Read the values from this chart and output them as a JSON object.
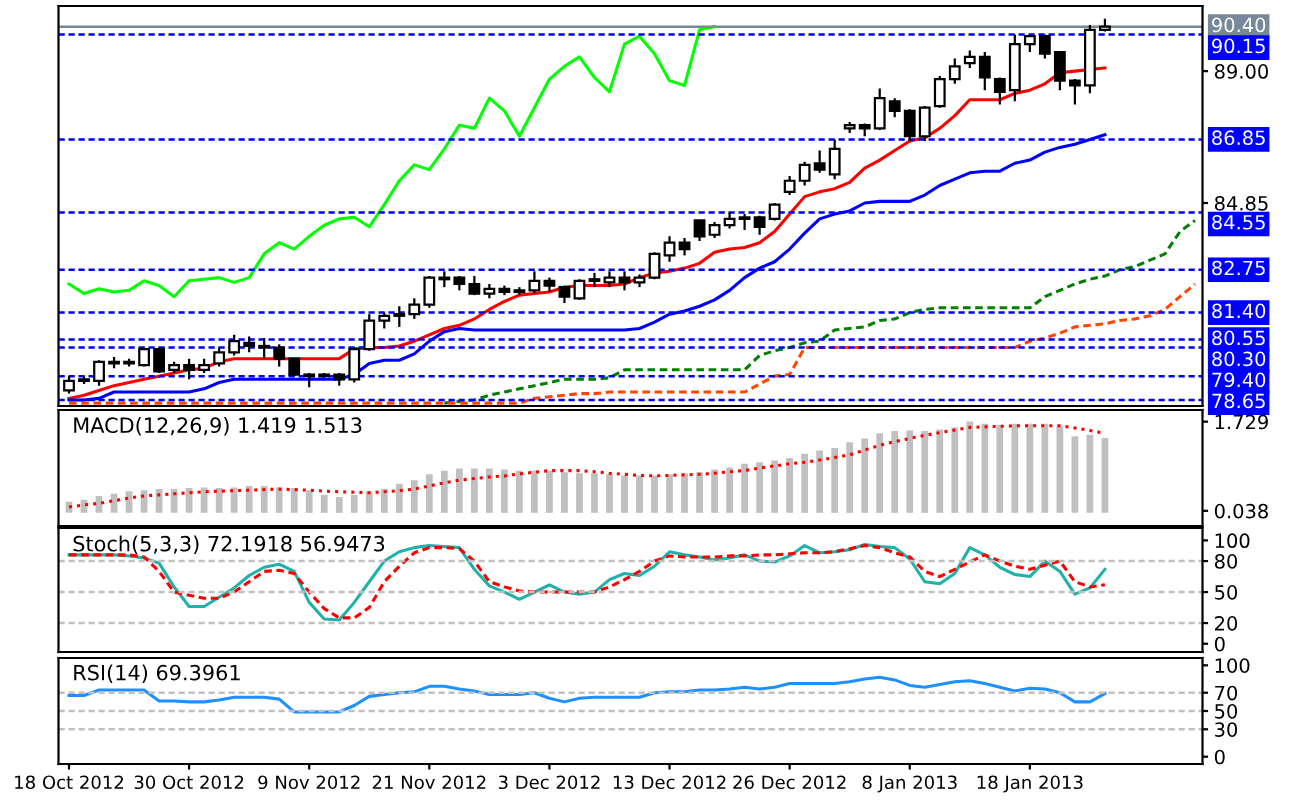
{
  "chart_data": [
    {
      "type": "candlestick",
      "categories": [
        null,
        null,
        null,
        null,
        null,
        null,
        null,
        null,
        null,
        null,
        null,
        null,
        null,
        null,
        null,
        null,
        null,
        null,
        null,
        null,
        null,
        null,
        null,
        null,
        null,
        null,
        null,
        null,
        null,
        null,
        null,
        null,
        null,
        null,
        null,
        null,
        null,
        null,
        null,
        null,
        null,
        null,
        null,
        null,
        null,
        null,
        null,
        null,
        null,
        null,
        null,
        null,
        null,
        null,
        null,
        null,
        null,
        null,
        null,
        null,
        null,
        null,
        null,
        null,
        null,
        null,
        null,
        null,
        null,
        null,
        null,
        null,
        null,
        null,
        null,
        null
      ],
      "ohlc": [
        [
          78.95,
          79.4,
          78.85,
          79.25
        ],
        [
          79.3,
          79.4,
          79.15,
          79.25
        ],
        [
          79.25,
          79.9,
          79.1,
          79.85
        ],
        [
          79.8,
          80.0,
          79.65,
          79.85
        ],
        [
          79.85,
          79.95,
          79.7,
          79.8
        ],
        [
          79.75,
          80.3,
          79.7,
          80.25
        ],
        [
          80.25,
          80.3,
          79.5,
          79.55
        ],
        [
          79.6,
          79.85,
          79.5,
          79.75
        ],
        [
          79.75,
          79.95,
          79.3,
          79.6
        ],
        [
          79.6,
          79.95,
          79.5,
          79.75
        ],
        [
          79.8,
          80.3,
          79.7,
          80.15
        ],
        [
          80.15,
          80.7,
          80.05,
          80.5
        ],
        [
          80.45,
          80.65,
          80.15,
          80.35
        ],
        [
          80.35,
          80.6,
          79.95,
          80.3
        ],
        [
          80.3,
          80.4,
          79.7,
          79.95
        ],
        [
          79.95,
          79.95,
          79.4,
          79.45
        ],
        [
          79.45,
          79.5,
          79.05,
          79.4
        ],
        [
          79.4,
          79.5,
          79.35,
          79.45
        ],
        [
          79.45,
          79.5,
          79.1,
          79.3
        ],
        [
          79.3,
          80.3,
          79.2,
          80.25
        ],
        [
          80.25,
          81.35,
          80.2,
          81.15
        ],
        [
          81.15,
          81.4,
          80.9,
          81.3
        ],
        [
          81.3,
          81.6,
          80.95,
          81.35
        ],
        [
          81.35,
          81.85,
          81.2,
          81.65
        ],
        [
          81.65,
          82.55,
          81.55,
          82.5
        ],
        [
          82.5,
          82.7,
          82.2,
          82.45
        ],
        [
          82.5,
          82.55,
          82.1,
          82.3
        ],
        [
          82.3,
          82.55,
          81.95,
          82.0
        ],
        [
          82.0,
          82.3,
          81.85,
          82.15
        ],
        [
          82.15,
          82.25,
          81.95,
          82.05
        ],
        [
          82.05,
          82.2,
          81.95,
          82.1
        ],
        [
          82.1,
          82.7,
          82.0,
          82.4
        ],
        [
          82.4,
          82.5,
          82.05,
          82.25
        ],
        [
          82.2,
          82.25,
          81.7,
          81.9
        ],
        [
          81.85,
          82.45,
          81.8,
          82.4
        ],
        [
          82.4,
          82.65,
          82.2,
          82.45
        ],
        [
          82.35,
          82.7,
          82.2,
          82.5
        ],
        [
          82.5,
          82.7,
          82.1,
          82.35
        ],
        [
          82.35,
          82.6,
          82.2,
          82.5
        ],
        [
          82.5,
          83.3,
          82.45,
          83.25
        ],
        [
          83.2,
          83.8,
          83.0,
          83.6
        ],
        [
          83.6,
          83.75,
          83.2,
          83.4
        ],
        [
          84.3,
          84.3,
          83.65,
          83.8
        ],
        [
          83.85,
          84.25,
          83.75,
          84.15
        ],
        [
          84.15,
          84.55,
          84.05,
          84.35
        ],
        [
          84.35,
          84.5,
          84.0,
          84.4
        ],
        [
          84.4,
          84.45,
          83.85,
          84.1
        ],
        [
          84.35,
          84.85,
          84.3,
          84.8
        ],
        [
          85.2,
          85.7,
          85.1,
          85.55
        ],
        [
          85.55,
          86.15,
          85.4,
          86.05
        ],
        [
          86.1,
          86.5,
          85.8,
          85.9
        ],
        [
          85.75,
          86.85,
          85.6,
          86.55
        ],
        [
          87.2,
          87.4,
          87.05,
          87.3
        ],
        [
          87.3,
          87.35,
          86.95,
          87.2
        ],
        [
          87.2,
          88.45,
          87.15,
          88.15
        ],
        [
          88.05,
          88.15,
          87.55,
          87.75
        ],
        [
          87.75,
          87.8,
          86.8,
          86.95
        ],
        [
          86.95,
          87.9,
          86.8,
          87.85
        ],
        [
          87.9,
          88.85,
          87.85,
          88.75
        ],
        [
          88.75,
          89.4,
          88.6,
          89.15
        ],
        [
          89.25,
          89.65,
          89.1,
          89.45
        ],
        [
          89.45,
          89.6,
          88.4,
          88.8
        ],
        [
          88.75,
          88.8,
          87.95,
          88.35
        ],
        [
          88.4,
          90.15,
          88.05,
          89.85
        ],
        [
          89.85,
          90.15,
          89.6,
          90.1
        ],
        [
          90.1,
          90.15,
          89.4,
          89.55
        ],
        [
          89.6,
          89.6,
          88.4,
          88.7
        ],
        [
          88.7,
          88.75,
          87.95,
          88.55
        ],
        [
          88.55,
          90.45,
          88.3,
          90.3
        ],
        [
          90.3,
          90.65,
          90.25,
          90.4
        ],
        null,
        null,
        null,
        null,
        null,
        null
      ],
      "series": [
        {
          "type": "line",
          "color": "#ff0000",
          "values": [
            78.7,
            78.8,
            78.95,
            79.1,
            79.2,
            79.3,
            79.4,
            79.5,
            79.6,
            79.65,
            79.85,
            79.95,
            79.95,
            79.95,
            79.95,
            79.95,
            79.95,
            79.95,
            79.95,
            80.25,
            80.3,
            80.3,
            80.35,
            80.5,
            80.7,
            80.9,
            81.0,
            81.2,
            81.5,
            81.75,
            81.95,
            82.0,
            82.05,
            82.2,
            82.25,
            82.25,
            82.25,
            82.3,
            82.5,
            82.65,
            82.7,
            82.8,
            82.95,
            83.3,
            83.4,
            83.45,
            83.6,
            83.95,
            84.5,
            85.05,
            85.2,
            85.3,
            85.5,
            85.95,
            86.2,
            86.5,
            86.8,
            86.9,
            87.2,
            87.6,
            88.1,
            88.1,
            88.1,
            88.3,
            88.4,
            88.6,
            88.95,
            89.0,
            89.05,
            89.1,
            null,
            null,
            null,
            null,
            null,
            null
          ]
        },
        {
          "type": "line",
          "color": "#0000ff",
          "values": [
            78.65,
            78.65,
            78.7,
            78.9,
            78.9,
            78.9,
            78.9,
            78.9,
            78.9,
            79.0,
            79.2,
            79.3,
            79.3,
            79.3,
            79.3,
            79.3,
            79.3,
            79.3,
            79.3,
            79.45,
            79.8,
            79.9,
            79.9,
            80.1,
            80.5,
            80.8,
            80.9,
            80.85,
            80.85,
            80.85,
            80.85,
            80.85,
            80.85,
            80.85,
            80.85,
            80.85,
            80.85,
            80.85,
            80.9,
            81.1,
            81.35,
            81.45,
            81.6,
            81.8,
            82.1,
            82.5,
            82.8,
            83.0,
            83.4,
            83.9,
            84.35,
            84.5,
            84.6,
            84.85,
            84.9,
            84.9,
            84.9,
            85.1,
            85.4,
            85.6,
            85.8,
            85.85,
            85.85,
            86.1,
            86.2,
            86.45,
            86.6,
            86.7,
            86.85,
            87.0,
            null,
            null,
            null,
            null,
            null,
            null
          ]
        },
        {
          "type": "line",
          "color": "#00ff00",
          "values": [
            82.3,
            82.0,
            82.15,
            82.05,
            82.1,
            82.4,
            82.25,
            81.9,
            82.4,
            82.45,
            82.5,
            82.35,
            82.5,
            83.25,
            83.6,
            83.4,
            83.8,
            84.15,
            84.35,
            84.4,
            84.1,
            84.8,
            85.55,
            86.05,
            85.9,
            86.55,
            87.3,
            87.2,
            88.15,
            87.75,
            86.95,
            87.85,
            88.75,
            89.15,
            89.45,
            88.8,
            88.35,
            89.85,
            90.1,
            89.55,
            88.7,
            88.55,
            90.3,
            90.4,
            null,
            null,
            null,
            null,
            null,
            null,
            null,
            null,
            null,
            null,
            null,
            null,
            null,
            null,
            null,
            null,
            null,
            null,
            null,
            null,
            null,
            null,
            null,
            null,
            null,
            null,
            null,
            null,
            null,
            null,
            null,
            null
          ]
        },
        {
          "type": "line",
          "color": "#008000",
          "line_style": "dashed",
          "values": [
            null,
            null,
            null,
            null,
            null,
            null,
            null,
            null,
            null,
            null,
            null,
            null,
            null,
            null,
            null,
            null,
            null,
            null,
            null,
            null,
            null,
            null,
            null,
            null,
            null,
            78.55,
            78.6,
            78.65,
            78.8,
            78.9,
            79.0,
            79.1,
            79.2,
            79.3,
            79.3,
            79.3,
            79.35,
            79.6,
            79.6,
            79.6,
            79.6,
            79.6,
            79.6,
            79.6,
            79.6,
            79.6,
            80.05,
            80.2,
            80.3,
            80.45,
            80.5,
            80.85,
            80.9,
            80.95,
            81.15,
            81.2,
            81.4,
            81.5,
            81.55,
            81.55,
            81.55,
            81.55,
            81.55,
            81.55,
            81.55,
            81.9,
            82.1,
            82.3,
            82.45,
            82.55,
            82.75,
            82.85,
            83.05,
            83.25,
            83.95,
            84.3
          ]
        },
        {
          "type": "line",
          "color": "#ff4500",
          "line_style": "dashed",
          "values": [
            78.55,
            78.55,
            78.55,
            78.55,
            78.55,
            78.55,
            78.55,
            78.55,
            78.55,
            78.55,
            78.55,
            78.55,
            78.55,
            78.55,
            78.55,
            78.55,
            78.55,
            78.55,
            78.55,
            78.55,
            78.55,
            78.55,
            78.55,
            78.55,
            78.55,
            78.55,
            78.55,
            78.55,
            78.55,
            78.55,
            78.55,
            78.7,
            78.75,
            78.8,
            78.85,
            78.85,
            78.9,
            78.9,
            78.9,
            78.9,
            78.9,
            78.9,
            78.9,
            78.9,
            78.9,
            78.9,
            79.15,
            79.4,
            79.45,
            80.3,
            80.3,
            80.3,
            80.3,
            80.3,
            80.3,
            80.3,
            80.3,
            80.3,
            80.3,
            80.3,
            80.3,
            80.3,
            80.3,
            80.3,
            80.5,
            80.6,
            80.75,
            80.95,
            81.0,
            81.05,
            81.15,
            81.2,
            81.3,
            81.5,
            81.9,
            82.3
          ]
        }
      ],
      "ylim": [
        78.46,
        91.05
      ],
      "yticks": [
        {
          "value": 89.0,
          "label": "89.00"
        },
        {
          "value": 84.85,
          "label": "84.85"
        }
      ],
      "ref_lines": [
        {
          "axis": "y",
          "value": 90.4,
          "label": "90.40",
          "color": "#778899",
          "line_style": "solid"
        },
        {
          "axis": "y",
          "value": 90.15,
          "label": "90.15",
          "color": "#0000ff",
          "line_style": "dashed"
        },
        {
          "axis": "y",
          "value": 86.85,
          "label": "86.85",
          "color": "#0000ff",
          "line_style": "dashed"
        },
        {
          "axis": "y",
          "value": 84.55,
          "label": "84.55",
          "color": "#0000ff",
          "line_style": "dashed"
        },
        {
          "axis": "y",
          "value": 82.75,
          "label": "82.75",
          "color": "#0000ff",
          "line_style": "dashed"
        },
        {
          "axis": "y",
          "value": 81.4,
          "label": "81.40",
          "color": "#0000ff",
          "line_style": "dashed"
        },
        {
          "axis": "y",
          "value": 80.55,
          "label": "80.55",
          "color": "#0000ff",
          "line_style": "dashed"
        },
        {
          "axis": "y",
          "value": 80.3,
          "label": "80.30",
          "color": "#0000ff",
          "line_style": "dashed"
        },
        {
          "axis": "y",
          "value": 79.4,
          "label": "79.40",
          "color": "#0000ff",
          "line_style": "dashed"
        },
        {
          "axis": "y",
          "value": 78.65,
          "label": "78.65",
          "color": "#0000ff",
          "line_style": "dashed"
        }
      ],
      "tick_labels": "y"
    },
    {
      "type": "bar",
      "title": "MACD(12,26,9) 1.419 1.513",
      "categories": [
        null,
        null,
        null,
        null,
        null,
        null,
        null,
        null,
        null,
        null,
        null,
        null,
        null,
        null,
        null,
        null,
        null,
        null,
        null,
        null,
        null,
        null,
        null,
        null,
        null,
        null,
        null,
        null,
        null,
        null,
        null,
        null,
        null,
        null,
        null,
        null,
        null,
        null,
        null,
        null,
        null,
        null,
        null,
        null,
        null,
        null,
        null,
        null,
        null,
        null,
        null,
        null,
        null,
        null,
        null,
        null,
        null,
        null,
        null,
        null,
        null,
        null,
        null,
        null,
        null,
        null,
        null,
        null,
        null,
        null,
        null,
        null,
        null,
        null,
        null,
        null
      ],
      "series": [
        {
          "type": "bar",
          "color": "#c0c0c0",
          "values": [
            0.21,
            0.25,
            0.32,
            0.36,
            0.41,
            0.43,
            0.45,
            0.45,
            0.47,
            0.48,
            0.47,
            0.48,
            0.51,
            0.51,
            0.48,
            0.47,
            0.43,
            0.34,
            0.3,
            0.34,
            0.41,
            0.45,
            0.55,
            0.62,
            0.73,
            0.8,
            0.84,
            0.84,
            0.84,
            0.82,
            0.8,
            0.8,
            0.8,
            0.77,
            0.75,
            0.75,
            0.73,
            0.71,
            0.71,
            0.71,
            0.73,
            0.75,
            0.77,
            0.82,
            0.86,
            0.93,
            0.96,
            0.99,
            1.04,
            1.12,
            1.18,
            1.23,
            1.34,
            1.41,
            1.51,
            1.55,
            1.56,
            1.55,
            1.58,
            1.62,
            1.73,
            1.69,
            1.67,
            1.69,
            1.69,
            1.69,
            1.65,
            1.45,
            1.48,
            1.42,
            null,
            null,
            null,
            null,
            null,
            null
          ]
        },
        {
          "type": "line",
          "color": "#ff0000",
          "line_style": "dotted",
          "values": [
            0.11,
            0.15,
            0.18,
            0.23,
            0.28,
            0.32,
            0.34,
            0.36,
            0.38,
            0.4,
            0.41,
            0.42,
            0.43,
            0.44,
            0.45,
            0.44,
            0.43,
            0.41,
            0.4,
            0.39,
            0.38,
            0.4,
            0.42,
            0.45,
            0.51,
            0.57,
            0.62,
            0.65,
            0.68,
            0.7,
            0.74,
            0.77,
            0.8,
            0.8,
            0.8,
            0.78,
            0.75,
            0.73,
            0.71,
            0.7,
            0.71,
            0.72,
            0.73,
            0.75,
            0.78,
            0.8,
            0.85,
            0.89,
            0.93,
            0.96,
            1.0,
            1.05,
            1.1,
            1.19,
            1.28,
            1.35,
            1.41,
            1.47,
            1.52,
            1.57,
            1.62,
            1.63,
            1.64,
            1.65,
            1.65,
            1.65,
            1.65,
            1.61,
            1.56,
            1.51,
            null,
            null,
            null,
            null,
            null,
            null
          ]
        }
      ],
      "ylim": [
        -0.25,
        1.95
      ],
      "yticks": [
        1.729,
        0.038
      ],
      "tick_labels": "y"
    },
    {
      "type": "line",
      "title": "Stoch(5,3,3) 72.1918 56.9473",
      "categories": [
        null,
        null,
        null,
        null,
        null,
        null,
        null,
        null,
        null,
        null,
        null,
        null,
        null,
        null,
        null,
        null,
        null,
        null,
        null,
        null,
        null,
        null,
        null,
        null,
        null,
        null,
        null,
        null,
        null,
        null,
        null,
        null,
        null,
        null,
        null,
        null,
        null,
        null,
        null,
        null,
        null,
        null,
        null,
        null,
        null,
        null,
        null,
        null,
        null,
        null,
        null,
        null,
        null,
        null,
        null,
        null,
        null,
        null,
        null,
        null,
        null,
        null,
        null,
        null,
        null,
        null,
        null,
        null,
        null,
        null,
        null,
        null,
        null,
        null,
        null,
        null
      ],
      "series": [
        {
          "type": "line",
          "color": "#20b2aa",
          "values": [
            86,
            86,
            86,
            86,
            85,
            83,
            78,
            55,
            36,
            36,
            45,
            54,
            66,
            74,
            77,
            70,
            40,
            24,
            23,
            40,
            60,
            80,
            89,
            93,
            95,
            94,
            93,
            72,
            56,
            50,
            43,
            50,
            57,
            50,
            48,
            50,
            62,
            68,
            66,
            75,
            89,
            86,
            84,
            81,
            83,
            86,
            80,
            79,
            85,
            95,
            88,
            89,
            91,
            96,
            94,
            93,
            82,
            60,
            58,
            68,
            93,
            86,
            74,
            67,
            65,
            80,
            70,
            48,
            54,
            72,
            null,
            null,
            null,
            null,
            null,
            null
          ]
        },
        {
          "type": "line",
          "color": "#ff0000",
          "line_style": "dashed",
          "values": [
            86,
            86,
            86,
            86,
            86,
            84,
            70,
            50,
            47,
            44,
            44,
            50,
            60,
            70,
            71,
            68,
            50,
            34,
            25,
            25,
            35,
            60,
            75,
            88,
            93,
            93,
            92,
            80,
            60,
            55,
            51,
            50,
            50,
            50,
            50,
            50,
            55,
            62,
            70,
            80,
            85,
            84,
            84,
            84,
            85,
            85,
            86,
            86,
            87,
            88,
            88,
            89,
            92,
            95,
            93,
            88,
            84,
            70,
            65,
            72,
            79,
            86,
            80,
            75,
            72,
            76,
            80,
            60,
            55,
            57,
            null,
            null,
            null,
            null,
            null,
            null
          ]
        }
      ],
      "ylim": [
        -8,
        112
      ],
      "yticks": [
        100,
        80,
        50,
        20,
        0
      ],
      "ref_lines": [
        {
          "axis": "y",
          "value": 80,
          "color": "#c0c0c0",
          "line_style": "dashed"
        },
        {
          "axis": "y",
          "value": 50,
          "color": "#c0c0c0",
          "line_style": "dashed"
        },
        {
          "axis": "y",
          "value": 20,
          "color": "#c0c0c0",
          "line_style": "dashed"
        }
      ],
      "tick_labels": "y"
    },
    {
      "type": "line",
      "title": "RSI(14) 69.3961",
      "categories": [
        "18 Oct 2012",
        null,
        null,
        null,
        null,
        null,
        null,
        null,
        "30 Oct 2012",
        null,
        null,
        null,
        null,
        null,
        null,
        null,
        "9 Nov 2012",
        null,
        null,
        null,
        null,
        null,
        null,
        null,
        "21 Nov 2012",
        null,
        null,
        null,
        null,
        null,
        null,
        null,
        "3 Dec 2012",
        null,
        null,
        null,
        null,
        null,
        null,
        null,
        "13 Dec 2012",
        null,
        null,
        null,
        null,
        null,
        null,
        null,
        "26 Dec 2012",
        null,
        null,
        null,
        null,
        null,
        null,
        null,
        "8 Jan 2013",
        null,
        null,
        null,
        null,
        null,
        null,
        null,
        "18 Jan 2013",
        null,
        null,
        null,
        null,
        null,
        null,
        null,
        null,
        null,
        null,
        null
      ],
      "series": [
        {
          "type": "line",
          "color": "#1e90ff",
          "values": [
            67,
            67,
            73,
            73,
            73,
            73,
            61,
            61,
            60,
            60,
            62,
            65,
            65,
            65,
            63,
            49,
            49,
            49,
            49,
            56,
            66,
            68,
            70,
            71,
            77,
            77,
            74,
            72,
            68,
            68,
            68,
            70,
            64,
            60,
            64,
            65,
            65,
            65,
            65,
            70,
            71,
            71,
            73,
            73,
            74,
            76,
            74,
            76,
            80,
            80,
            80,
            80,
            82,
            85,
            87,
            84,
            78,
            76,
            79,
            82,
            83,
            80,
            76,
            72,
            75,
            74,
            70,
            60,
            60,
            69,
            null,
            null,
            null,
            null,
            null,
            null
          ]
        }
      ],
      "ylim": [
        -8,
        108
      ],
      "yticks": [
        100,
        70,
        50,
        30,
        0
      ],
      "ref_lines": [
        {
          "axis": "y",
          "value": 70,
          "color": "#c0c0c0",
          "line_style": "dashed"
        },
        {
          "axis": "y",
          "value": 50,
          "color": "#c0c0c0",
          "line_style": "dashed"
        },
        {
          "axis": "y",
          "value": 30,
          "color": "#c0c0c0",
          "line_style": "dashed"
        }
      ]
    }
  ]
}
